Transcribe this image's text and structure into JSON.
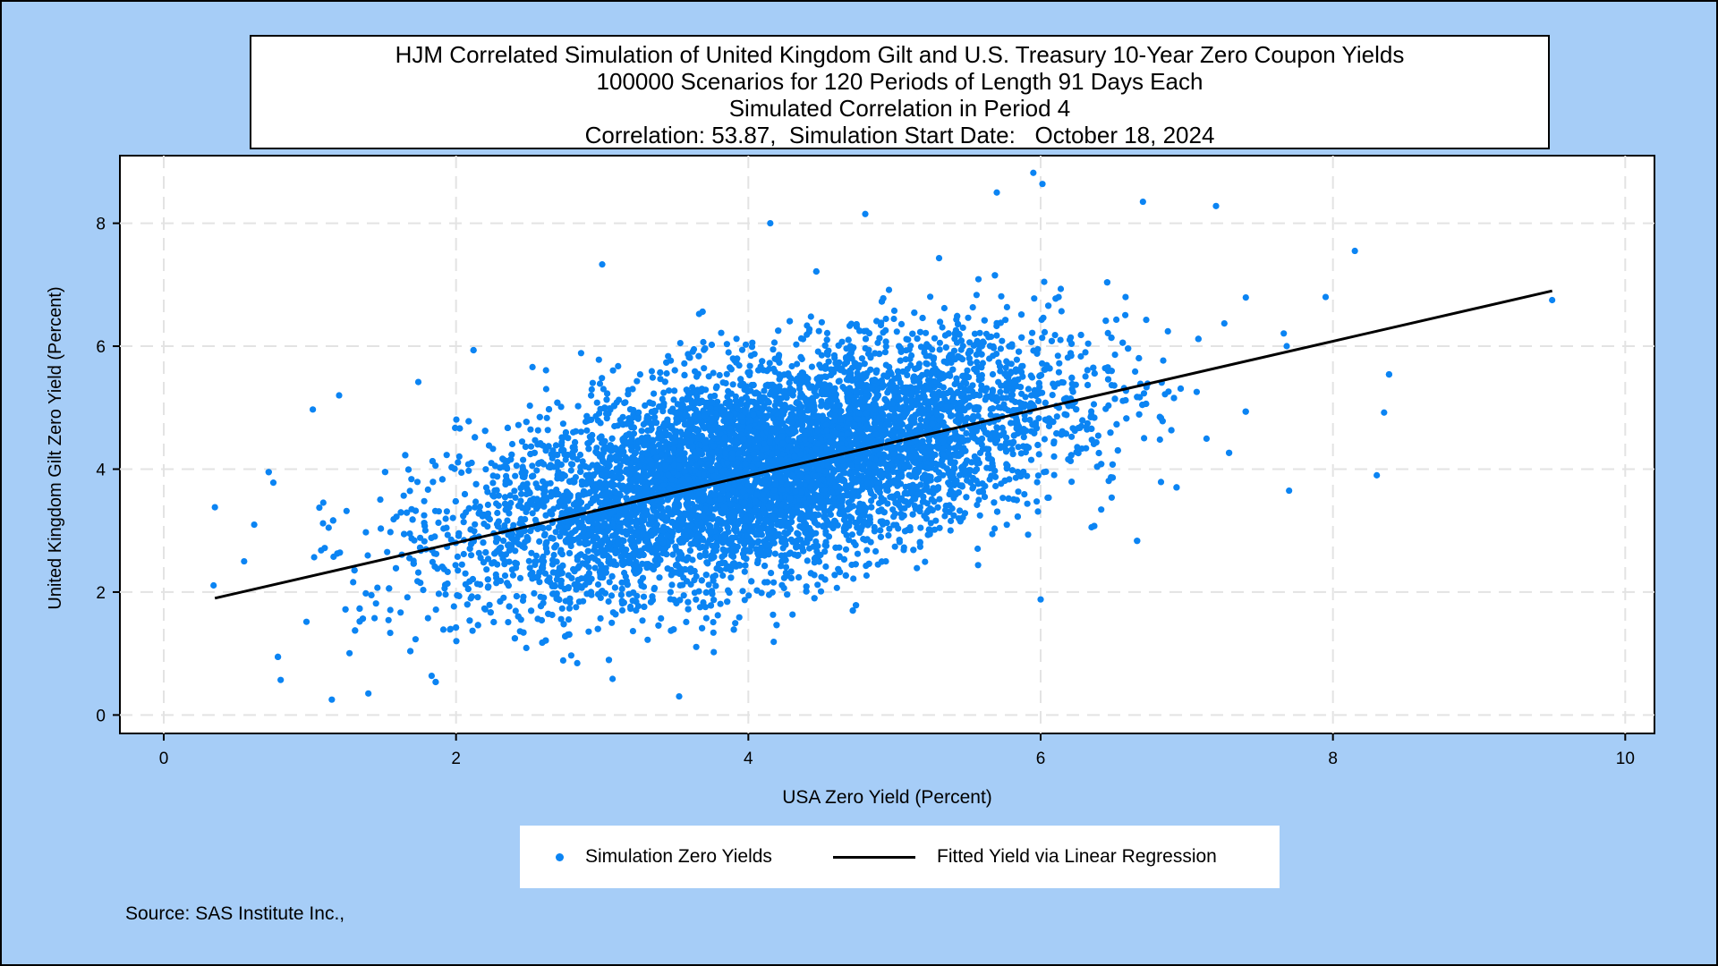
{
  "chart_data": {
    "type": "scatter",
    "title_lines": [
      "HJM Correlated Simulation of United Kingdom Gilt and U.S. Treasury 10-Year Zero Coupon Yields",
      "100000 Scenarios for 120 Periods of Length 91 Days Each",
      "Simulated Correlation in Period 4",
      "Correlation: 53.87,  Simulation Start Date:   October 18, 2024"
    ],
    "xlabel": "USA Zero Yield (Percent)",
    "ylabel": "United Kingdom Gilt Zero Yield (Percent)",
    "xlim": [
      -0.3,
      10.2
    ],
    "ylim": [
      -0.3,
      9.1
    ],
    "x_ticks": [
      0,
      2,
      4,
      6,
      8,
      10
    ],
    "y_ticks": [
      0,
      2,
      4,
      6,
      8
    ],
    "grid": true,
    "series": [
      {
        "name": "Simulation Zero Yields",
        "kind": "scatter",
        "color": "#0b84f3",
        "n_points": 100000,
        "cloud": {
          "x_mean": 4.1,
          "y_mean": 4.0,
          "x_sd": 1.0,
          "y_sd": 1.0,
          "correlation": 0.5387
        },
        "outliers": [
          [
            0.35,
            3.38
          ],
          [
            0.75,
            3.78
          ],
          [
            0.8,
            0.57
          ],
          [
            1.15,
            0.25
          ],
          [
            1.02,
            4.97
          ],
          [
            1.2,
            5.2
          ],
          [
            3.0,
            7.33
          ],
          [
            4.15,
            8.0
          ],
          [
            5.95,
            8.82
          ],
          [
            5.7,
            8.5
          ],
          [
            6.7,
            8.35
          ],
          [
            7.2,
            8.28
          ],
          [
            8.15,
            7.55
          ],
          [
            8.35,
            4.92
          ],
          [
            8.3,
            3.9
          ],
          [
            9.5,
            6.75
          ],
          [
            6.0,
            1.88
          ],
          [
            7.7,
            3.65
          ],
          [
            1.4,
            0.35
          ],
          [
            4.8,
            8.15
          ],
          [
            0.55,
            2.5
          ],
          [
            7.95,
            6.8
          ]
        ]
      },
      {
        "name": "Fitted Yield via Linear Regression",
        "kind": "line",
        "color": "#000000",
        "x": [
          0.35,
          9.5
        ],
        "y": [
          1.9,
          6.9
        ]
      }
    ],
    "legend": {
      "placement": "bottom-center",
      "items": [
        "Simulation Zero Yields",
        "Fitted Yield via Linear Regression"
      ]
    }
  },
  "source_note": "Source: SAS Institute Inc.,"
}
